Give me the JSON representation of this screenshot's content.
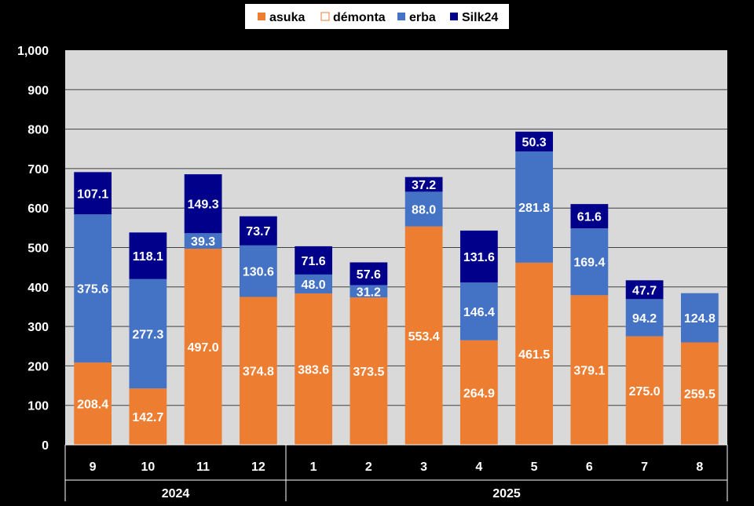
{
  "colors": {
    "background": "#000000",
    "plot_area": "#d9d9d9",
    "gridline": "#404040",
    "tick_text": "#ffffff",
    "legend_bg": "#ffffff",
    "legend_text": "#000000"
  },
  "chart_data": {
    "type": "bar",
    "stacked": true,
    "title": "",
    "xlabel": "",
    "ylabel": "",
    "ylim": [
      0,
      1000
    ],
    "y_ticks": [
      "0",
      "100",
      "200",
      "300",
      "400",
      "500",
      "600",
      "700",
      "800",
      "900",
      "1,000"
    ],
    "grid": true,
    "legend_position": "top",
    "categories": [
      "9",
      "10",
      "11",
      "12",
      "1",
      "2",
      "3",
      "4",
      "5",
      "6",
      "7",
      "8"
    ],
    "groups": [
      {
        "label": "2024",
        "start": 0,
        "end": 3
      },
      {
        "label": "2025",
        "start": 4,
        "end": 11
      }
    ],
    "series": [
      {
        "name": "asuka",
        "color": "#ed7d31",
        "label_color": "#ffffff",
        "values": [
          208.4,
          142.7,
          497.0,
          374.8,
          383.6,
          373.5,
          553.4,
          264.9,
          461.5,
          379.1,
          275.0,
          259.5
        ],
        "labels": [
          "208.4",
          "142.7",
          "497.0",
          "374.8",
          "383.6",
          "373.5",
          "553.4",
          "264.9",
          "461.5",
          "379.1",
          "275.0",
          "259.5"
        ]
      },
      {
        "name": "démonta",
        "color": "#ffffff",
        "border": "#ed7d31",
        "label_color": "#000000",
        "values": [
          0,
          0,
          0,
          0,
          0,
          0,
          0,
          0,
          0,
          0,
          0,
          0
        ],
        "labels": [
          "",
          "",
          "",
          "",
          "",
          "",
          "",
          "",
          "",
          "",
          "",
          ""
        ]
      },
      {
        "name": "erba",
        "color": "#4472c4",
        "label_color": "#ffffff",
        "values": [
          375.6,
          277.3,
          39.3,
          130.6,
          48.0,
          31.2,
          88.0,
          146.4,
          281.8,
          169.4,
          94.2,
          124.8
        ],
        "labels": [
          "375.6",
          "277.3",
          "39.3",
          "130.6",
          "48.0",
          "31.2",
          "88.0",
          "146.4",
          "281.8",
          "169.4",
          "94.2",
          "124.8"
        ]
      },
      {
        "name": "Silk24",
        "color": "#00008b",
        "label_color": "#ffffff",
        "values": [
          107.1,
          118.1,
          149.3,
          73.7,
          71.6,
          57.6,
          37.2,
          131.6,
          50.3,
          61.6,
          47.7,
          0
        ],
        "labels": [
          "107.1",
          "118.1",
          "149.3",
          "73.7",
          "71.6",
          "57.6",
          "37.2",
          "131.6",
          "50.3",
          "61.6",
          "47.7",
          ""
        ]
      }
    ]
  }
}
